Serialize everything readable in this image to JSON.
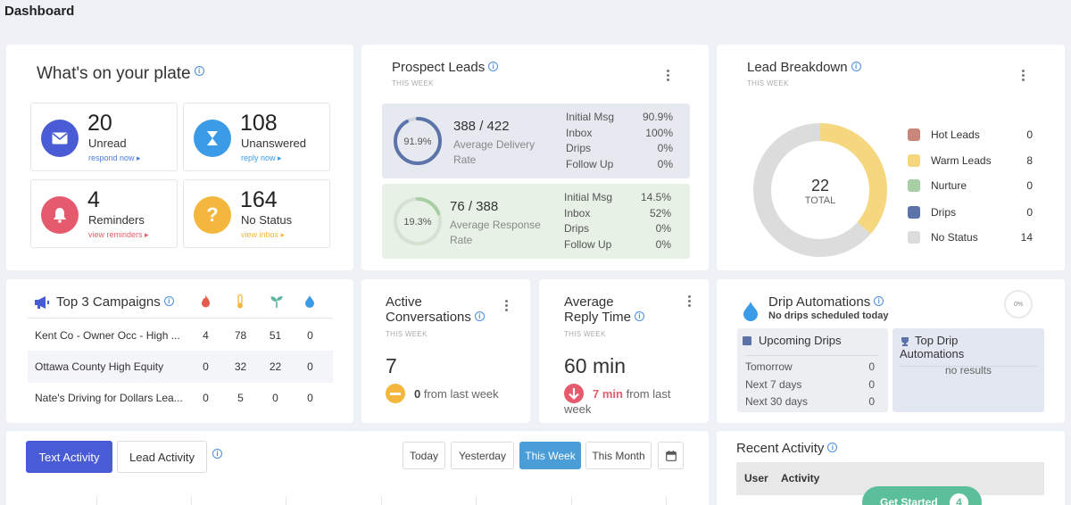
{
  "page": {
    "title": "Dashboard"
  },
  "plate": {
    "title": "What's on your plate",
    "items": [
      {
        "count": "20",
        "label": "Unread",
        "link": "respond now ▸",
        "color": "#4a5bd6",
        "link_color": "#4a7de0",
        "icon": "envelope-icon"
      },
      {
        "count": "108",
        "label": "Unanswered",
        "link": "reply now ▸",
        "color": "#3b9be6",
        "link_color": "#3b9be6",
        "icon": "hourglass-icon"
      },
      {
        "count": "4",
        "label": "Reminders",
        "link": "view reminders ▸",
        "color": "#e55b6d",
        "link_color": "#e55b6d",
        "icon": "bell-icon"
      },
      {
        "count": "164",
        "label": "No Status",
        "link": "view inbox ▸",
        "color": "#f2b73c",
        "link_color": "#f2b73c",
        "icon": "question-icon"
      }
    ]
  },
  "prospect": {
    "title": "Prospect Leads",
    "subtitle": "THIS WEEK",
    "delivery": {
      "percent_label": "91.9%",
      "fraction": 0.919,
      "ratio": "388 / 422",
      "label": "Average Delivery Rate",
      "rows": [
        {
          "k": "Initial Msg",
          "v": "90.9%"
        },
        {
          "k": "Inbox",
          "v": "100%"
        },
        {
          "k": "Drips",
          "v": "0%"
        },
        {
          "k": "Follow Up",
          "v": "0%"
        }
      ]
    },
    "response": {
      "percent_label": "19.3%",
      "fraction": 0.193,
      "ratio": "76 / 388",
      "label": "Average Response Rate",
      "rows": [
        {
          "k": "Initial Msg",
          "v": "14.5%"
        },
        {
          "k": "Inbox",
          "v": "52%"
        },
        {
          "k": "Drips",
          "v": "0%"
        },
        {
          "k": "Follow Up",
          "v": "0%"
        }
      ]
    }
  },
  "breakdown": {
    "title": "Lead Breakdown",
    "subtitle": "THIS WEEK",
    "total": "22",
    "total_label": "TOTAL",
    "legend": [
      {
        "name": "Hot Leads",
        "value": "0",
        "color": "#c9877c"
      },
      {
        "name": "Warm Leads",
        "value": "8",
        "color": "#f5d77f"
      },
      {
        "name": "Nurture",
        "value": "0",
        "color": "#a8cfa3"
      },
      {
        "name": "Drips",
        "value": "0",
        "color": "#5b73a8"
      },
      {
        "name": "No Status",
        "value": "14",
        "color": "#dcdcdc"
      }
    ]
  },
  "campaigns": {
    "title": "Top 3 Campaigns",
    "rows": [
      {
        "name": "Kent Co - Owner Occ - High ...",
        "v": [
          "4",
          "78",
          "51",
          "0"
        ]
      },
      {
        "name": "Ottawa County High Equity",
        "v": [
          "0",
          "32",
          "22",
          "0"
        ]
      },
      {
        "name": "Nate's Driving for Dollars Lea...",
        "v": [
          "0",
          "5",
          "0",
          "0"
        ]
      }
    ]
  },
  "active": {
    "title_line1": "Active",
    "title_line2": "Conversations",
    "subtitle": "THIS WEEK",
    "value": "7",
    "delta": "0",
    "delta_text": "from last week"
  },
  "reply": {
    "title_line1": "Average",
    "title_line2": "Reply Time",
    "subtitle": "THIS WEEK",
    "value": "60 min",
    "delta": "7 min",
    "delta_text_1": "from last",
    "delta_text_2": "week"
  },
  "drip": {
    "title": "Drip Automations",
    "note": "No drips scheduled today",
    "percent": "0%",
    "upcoming_title": "Upcoming Drips",
    "upcoming": [
      {
        "k": "Tomorrow",
        "v": "0"
      },
      {
        "k": "Next 7 days",
        "v": "0"
      },
      {
        "k": "Next 30 days",
        "v": "0"
      }
    ],
    "top_title_1": "Top Drip",
    "top_title_2": "Automations",
    "top_empty": "no results"
  },
  "activity": {
    "tabs": [
      "Text Activity",
      "Lead Activity"
    ],
    "ranges": [
      "Today",
      "Yesterday",
      "This Week",
      "This Month"
    ]
  },
  "recent": {
    "title": "Recent Activity",
    "col_user": "User",
    "col_activity": "Activity",
    "cta": "Get Started",
    "cta_count": "4"
  }
}
